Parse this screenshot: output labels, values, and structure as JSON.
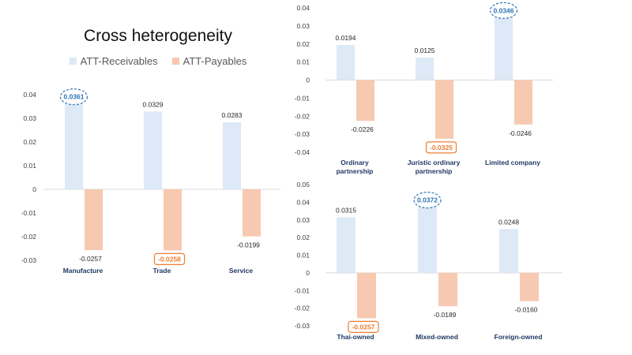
{
  "title": "Cross heterogeneity",
  "legend": {
    "receivables": "ATT-Receivables",
    "payables": "ATT-Payables"
  },
  "colors": {
    "receivables": "#dde9f6",
    "payables": "#f7c9b0",
    "highlight_blue": "#2e75b6",
    "highlight_orange": "#ed7d31",
    "category_label": "#1f3864",
    "axis_text": "#404040"
  },
  "chart_data": [
    {
      "type": "bar",
      "name": "firm-type",
      "categories": [
        "Manufacture",
        "Trade",
        "Service"
      ],
      "series": [
        {
          "name": "ATT-Receivables",
          "values": [
            0.0361,
            0.0329,
            0.0283
          ],
          "labels": [
            "0.0361",
            "0.0329",
            "0.0283"
          ]
        },
        {
          "name": "ATT-Payables",
          "values": [
            -0.0257,
            -0.0258,
            -0.0199
          ],
          "labels": [
            "-0.0257",
            "-0.0258",
            "-0.0199"
          ]
        }
      ],
      "highlight": {
        "receivables": 0,
        "payables": 1
      },
      "ylim": [
        -0.03,
        0.04
      ],
      "yticks": [
        "-0.03",
        "-0.02",
        "-0.01",
        "0",
        "0.01",
        "0.02",
        "0.03",
        "0.04"
      ]
    },
    {
      "type": "bar",
      "name": "legal-form",
      "categories": [
        "Ordinary partnership",
        "Juristic ordinary partnership",
        "Limited company"
      ],
      "series": [
        {
          "name": "ATT-Receivables",
          "values": [
            0.0194,
            0.0125,
            0.0346
          ],
          "labels": [
            "0.0194",
            "0.0125",
            "0.0346"
          ]
        },
        {
          "name": "ATT-Payables",
          "values": [
            -0.0226,
            -0.0325,
            -0.0246
          ],
          "labels": [
            "-0.0226",
            "-0.0325",
            "-0.0246"
          ]
        }
      ],
      "highlight": {
        "receivables": 2,
        "payables": 1
      },
      "ylim": [
        -0.04,
        0.04
      ],
      "yticks": [
        "-0.04",
        "-0.03",
        "-0.02",
        "-0.01",
        "0",
        "0.01",
        "0.02",
        "0.03",
        "0.04"
      ]
    },
    {
      "type": "bar",
      "name": "ownership",
      "categories": [
        "Thai-owned",
        "Mixed-owned",
        "Foreign-owned"
      ],
      "series": [
        {
          "name": "ATT-Receivables",
          "values": [
            0.0315,
            0.0372,
            0.0248
          ],
          "labels": [
            "0.0315",
            "0.0372",
            "0.0248"
          ]
        },
        {
          "name": "ATT-Payables",
          "values": [
            -0.0257,
            -0.0189,
            -0.016
          ],
          "labels": [
            "-0.0257",
            "-0.0189",
            "-0.0160"
          ]
        }
      ],
      "highlight": {
        "receivables": 1,
        "payables": 0
      },
      "ylim": [
        -0.03,
        0.05
      ],
      "yticks": [
        "-0.03",
        "-0.02",
        "-0.01",
        "0",
        "0.01",
        "0.02",
        "0.03",
        "0.04",
        "0.05"
      ]
    }
  ]
}
